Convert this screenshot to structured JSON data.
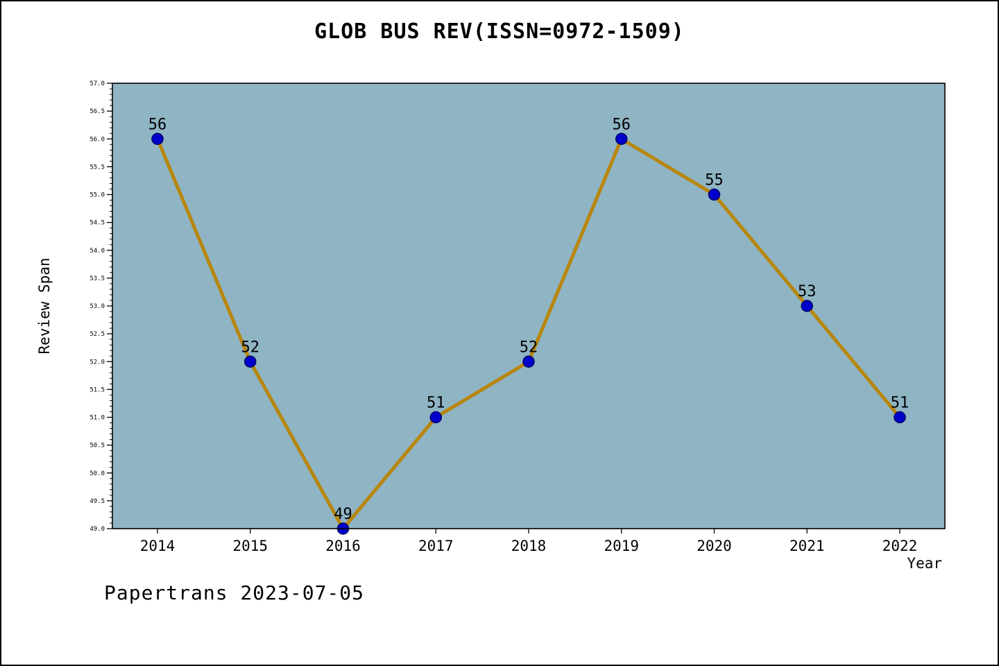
{
  "chart_data": {
    "type": "line",
    "title": "GLOB BUS REV(ISSN=0972-1509)",
    "xlabel": "Year",
    "ylabel": "Review Span",
    "categories": [
      "2014",
      "2015",
      "2016",
      "2017",
      "2018",
      "2019",
      "2020",
      "2021",
      "2022"
    ],
    "values": [
      56,
      52,
      49,
      51,
      52,
      56,
      55,
      53,
      51
    ],
    "point_labels": [
      "56",
      "52",
      "49",
      "51",
      "52",
      "56",
      "55",
      "53",
      "51"
    ],
    "ylim": [
      49.0,
      57.0
    ],
    "y_tick_step": 0.5,
    "y_minor_step": 0.1,
    "grid": false,
    "legend": "none",
    "colors": {
      "plot_background": "#8fb4c4",
      "line": "#b8860b",
      "marker_fill": "#0000cc",
      "marker_edge": "#000066",
      "axis": "#000000",
      "text": "#000000"
    }
  },
  "footer": {
    "text": "Papertrans 2023-07-05"
  }
}
